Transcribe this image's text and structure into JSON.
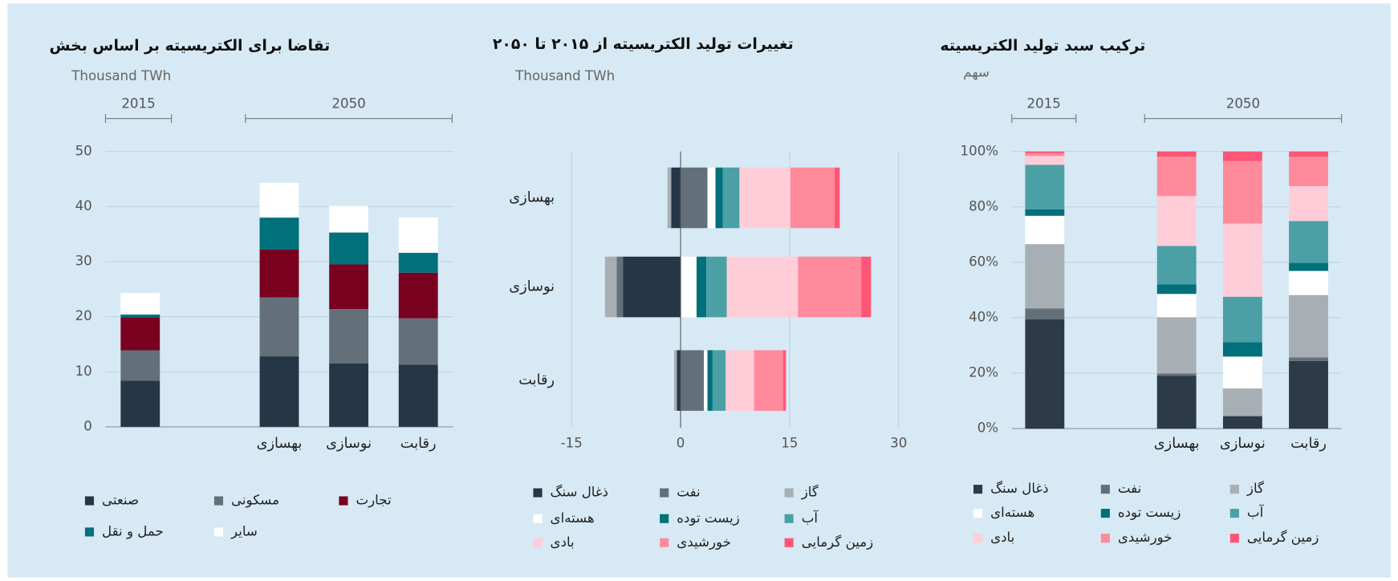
{
  "chart_data": [
    {
      "type": "stacked_bar",
      "title": "تقاضا برای الکتریسیته بر اساس بخش",
      "subtitle": "Thousand TWh",
      "annotations": [
        "2015",
        "2050"
      ],
      "categories": [
        null,
        "بهسازی",
        "نوسازی",
        "رقابت"
      ],
      "series": [
        {
          "name": "صنعتی",
          "color": "#253746",
          "values": [
            8.4,
            12.8,
            11.5,
            11.3
          ]
        },
        {
          "name": "مسکونی",
          "color": "#637079",
          "values": [
            5.5,
            10.7,
            9.9,
            8.4
          ]
        },
        {
          "name": "تجارت",
          "color": "#7a0020",
          "values": [
            6.0,
            8.7,
            8.1,
            8.3
          ]
        },
        {
          "name": "حمل و نقل",
          "color": "#00707a",
          "values": [
            0.5,
            5.8,
            5.8,
            3.6
          ]
        },
        {
          "name": "سایر",
          "color": "#ffffff",
          "values": [
            3.9,
            6.3,
            4.8,
            6.4
          ]
        }
      ],
      "ylim": [
        0,
        50
      ],
      "yticks": [
        0,
        10,
        20,
        30,
        40,
        50
      ],
      "grid": true
    },
    {
      "type": "stacked_barh",
      "title": "تغییرات تولید الکتریسیته از ۲۰۱۵ تا ۲۰۵۰",
      "subtitle": "Thousand TWh",
      "categories": [
        "بهسازی",
        "نوسازی",
        "رقابت"
      ],
      "series": [
        {
          "name": "ذغال سنگ",
          "color": "#253746",
          "values": [
            -1.3,
            -7.9,
            -0.5
          ]
        },
        {
          "name": "نفت",
          "color": "#637079",
          "values": [
            3.7,
            -0.9,
            3.2
          ]
        },
        {
          "name": "گاز",
          "color": "#a7aeb4",
          "values": [
            -0.5,
            -1.6,
            -0.4
          ]
        },
        {
          "name": "هسته‌ای",
          "color": "#ffffff",
          "values": [
            1.1,
            2.2,
            0.5
          ]
        },
        {
          "name": "زیست توده",
          "color": "#00707a",
          "values": [
            1.0,
            1.35,
            0.7
          ]
        },
        {
          "name": "آب",
          "color": "#4aa0a5",
          "values": [
            2.3,
            2.8,
            1.8
          ]
        },
        {
          "name": "بادی",
          "color": "#ffcdd8",
          "values": [
            7.0,
            9.8,
            3.9
          ]
        },
        {
          "name": "خورشیدی",
          "color": "#ff8a9c",
          "values": [
            6.1,
            8.7,
            4.0
          ]
        },
        {
          "name": "زمین گرمایی",
          "color": "#ff5577",
          "values": [
            0.7,
            1.35,
            0.4
          ]
        }
      ],
      "xlim": [
        -15,
        30
      ],
      "xticks": [
        -15,
        0,
        15,
        30
      ],
      "grid": true
    },
    {
      "type": "stacked_bar",
      "title": "ترکیب سبد تولید الکتریسیته",
      "subtitle": "سهم",
      "annotations": [
        "2015",
        "2050"
      ],
      "categories": [
        null,
        "بهسازی",
        "نوسازی",
        "رقابت"
      ],
      "series": [
        {
          "name": "ذغال سنگ",
          "color": "#2d3a47",
          "values": [
            39.5,
            19.0,
            4.5,
            24.4
          ]
        },
        {
          "name": "نفت",
          "color": "#637079",
          "values": [
            3.9,
            0.9,
            0,
            1.3
          ]
        },
        {
          "name": "گاز",
          "color": "#a7aeb4",
          "values": [
            23.2,
            20.3,
            10.0,
            22.5
          ]
        },
        {
          "name": "هسته‌ای",
          "color": "#ffffff",
          "values": [
            10.2,
            8.4,
            11.5,
            8.7
          ]
        },
        {
          "name": "زیست توده",
          "color": "#00707a",
          "values": [
            2.3,
            3.5,
            5.2,
            2.9
          ]
        },
        {
          "name": "آب",
          "color": "#4aa0a5",
          "values": [
            16.1,
            13.8,
            16.4,
            15.1
          ]
        },
        {
          "name": "بادی",
          "color": "#ffcdd8",
          "values": [
            3.2,
            18.0,
            26.4,
            12.6
          ]
        },
        {
          "name": "خورشیدی",
          "color": "#ff8a9c",
          "values": [
            1.0,
            14.2,
            22.5,
            10.6
          ]
        },
        {
          "name": "زمین گرمایی",
          "color": "#ff5577",
          "values": [
            0.6,
            1.9,
            3.5,
            1.9
          ]
        }
      ],
      "ylim": [
        0,
        100
      ],
      "yticks": [
        {
          "value": 0,
          "label": "0%"
        },
        {
          "value": 20,
          "label": "20%"
        },
        {
          "value": 40,
          "label": "40%"
        },
        {
          "value": 60,
          "label": "60%"
        },
        {
          "value": 80,
          "label": "80%"
        },
        {
          "value": 100,
          "label": "100%"
        }
      ],
      "grid": true
    }
  ]
}
